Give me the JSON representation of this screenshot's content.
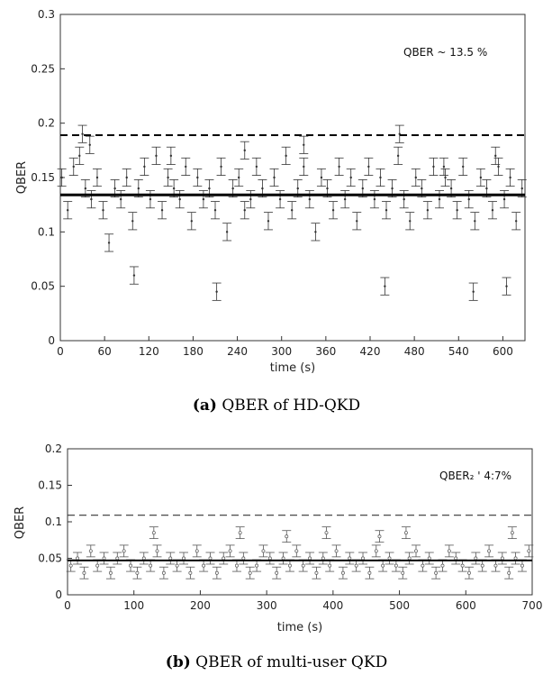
{
  "chart_data": [
    {
      "type": "scatter",
      "caption_label": "(a)",
      "caption_text": " QBER of HD-QKD",
      "xlabel": "time (s)",
      "ylabel": "QBER",
      "xlim": [
        0,
        630
      ],
      "ylim": [
        0,
        0.3
      ],
      "xticks": [
        0,
        60,
        120,
        180,
        240,
        300,
        360,
        420,
        480,
        540,
        600
      ],
      "yticks": [
        0,
        0.05,
        0.1,
        0.15,
        0.2,
        0.25,
        0.3
      ],
      "ytick_labels": [
        "0",
        "0.05",
        "0.1",
        "0.15",
        "0.2",
        "0.25",
        "0.3"
      ],
      "annotation": "QBER ~ 13.5 %",
      "lines": {
        "mean": 0.134,
        "threshold": 0.189
      },
      "errorbar": 0.008,
      "x": [
        2,
        10,
        18,
        26,
        34,
        42,
        50,
        58,
        66,
        74,
        82,
        90,
        98,
        106,
        114,
        122,
        130,
        138,
        146,
        154,
        162,
        170,
        178,
        186,
        194,
        202,
        210,
        218,
        226,
        234,
        242,
        250,
        258,
        266,
        274,
        282,
        290,
        298,
        306,
        314,
        322,
        330,
        338,
        346,
        354,
        362,
        370,
        378,
        386,
        394,
        402,
        410,
        418,
        426,
        434,
        442,
        450,
        458,
        466,
        474,
        482,
        490,
        498,
        506,
        514,
        522,
        530,
        538,
        546,
        554,
        562,
        570,
        578,
        586,
        594,
        602,
        610,
        618,
        626,
        30,
        100,
        212,
        440,
        560,
        605,
        40,
        150,
        250,
        330,
        460,
        520,
        590
      ],
      "y": [
        0.15,
        0.12,
        0.16,
        0.17,
        0.14,
        0.13,
        0.15,
        0.12,
        0.09,
        0.14,
        0.13,
        0.15,
        0.11,
        0.14,
        0.16,
        0.13,
        0.17,
        0.12,
        0.15,
        0.14,
        0.13,
        0.16,
        0.11,
        0.15,
        0.13,
        0.14,
        0.12,
        0.16,
        0.1,
        0.14,
        0.15,
        0.12,
        0.13,
        0.16,
        0.14,
        0.11,
        0.15,
        0.13,
        0.17,
        0.12,
        0.14,
        0.16,
        0.13,
        0.1,
        0.15,
        0.14,
        0.12,
        0.16,
        0.13,
        0.15,
        0.11,
        0.14,
        0.16,
        0.13,
        0.15,
        0.12,
        0.14,
        0.17,
        0.13,
        0.11,
        0.15,
        0.14,
        0.12,
        0.16,
        0.13,
        0.15,
        0.14,
        0.12,
        0.16,
        0.13,
        0.11,
        0.15,
        0.14,
        0.12,
        0.16,
        0.13,
        0.15,
        0.11,
        0.14,
        0.19,
        0.06,
        0.045,
        0.05,
        0.045,
        0.05,
        0.18,
        0.17,
        0.175,
        0.18,
        0.19,
        0.16,
        0.17
      ]
    },
    {
      "type": "scatter",
      "caption_label": "(b)",
      "caption_text": " QBER of multi-user QKD",
      "xlabel": "time (s)",
      "ylabel": "QBER",
      "xlim": [
        0,
        700
      ],
      "ylim": [
        0,
        0.2
      ],
      "xticks": [
        0,
        100,
        200,
        300,
        400,
        500,
        600,
        700
      ],
      "yticks": [
        0,
        0.05,
        0.1,
        0.15,
        0.2
      ],
      "ytick_labels": [
        "0",
        "0.05",
        "0.1",
        "0.15",
        "0.2"
      ],
      "annotation": "QBER₂ '  4:7%",
      "lines": {
        "mean": 0.047,
        "threshold": 0.109
      },
      "errorbar": 0.008,
      "x": [
        5,
        15,
        25,
        35,
        45,
        55,
        65,
        75,
        85,
        95,
        105,
        115,
        125,
        135,
        145,
        155,
        165,
        175,
        185,
        195,
        205,
        215,
        225,
        235,
        245,
        255,
        265,
        275,
        285,
        295,
        305,
        315,
        325,
        335,
        345,
        355,
        365,
        375,
        385,
        395,
        405,
        415,
        425,
        435,
        445,
        455,
        465,
        475,
        485,
        495,
        505,
        515,
        525,
        535,
        545,
        555,
        565,
        575,
        585,
        595,
        605,
        615,
        625,
        635,
        645,
        655,
        665,
        675,
        685,
        695,
        130,
        260,
        330,
        390,
        470,
        510,
        670
      ],
      "y": [
        0.04,
        0.05,
        0.03,
        0.06,
        0.04,
        0.05,
        0.03,
        0.05,
        0.06,
        0.04,
        0.03,
        0.05,
        0.04,
        0.06,
        0.03,
        0.05,
        0.04,
        0.05,
        0.03,
        0.06,
        0.04,
        0.05,
        0.03,
        0.05,
        0.06,
        0.04,
        0.05,
        0.03,
        0.04,
        0.06,
        0.05,
        0.03,
        0.05,
        0.04,
        0.06,
        0.04,
        0.05,
        0.03,
        0.05,
        0.04,
        0.06,
        0.03,
        0.05,
        0.04,
        0.05,
        0.03,
        0.06,
        0.04,
        0.05,
        0.04,
        0.03,
        0.05,
        0.06,
        0.04,
        0.05,
        0.03,
        0.04,
        0.06,
        0.05,
        0.04,
        0.03,
        0.05,
        0.04,
        0.06,
        0.04,
        0.05,
        0.03,
        0.05,
        0.04,
        0.06,
        0.085,
        0.085,
        0.08,
        0.085,
        0.08,
        0.085,
        0.085
      ]
    }
  ]
}
